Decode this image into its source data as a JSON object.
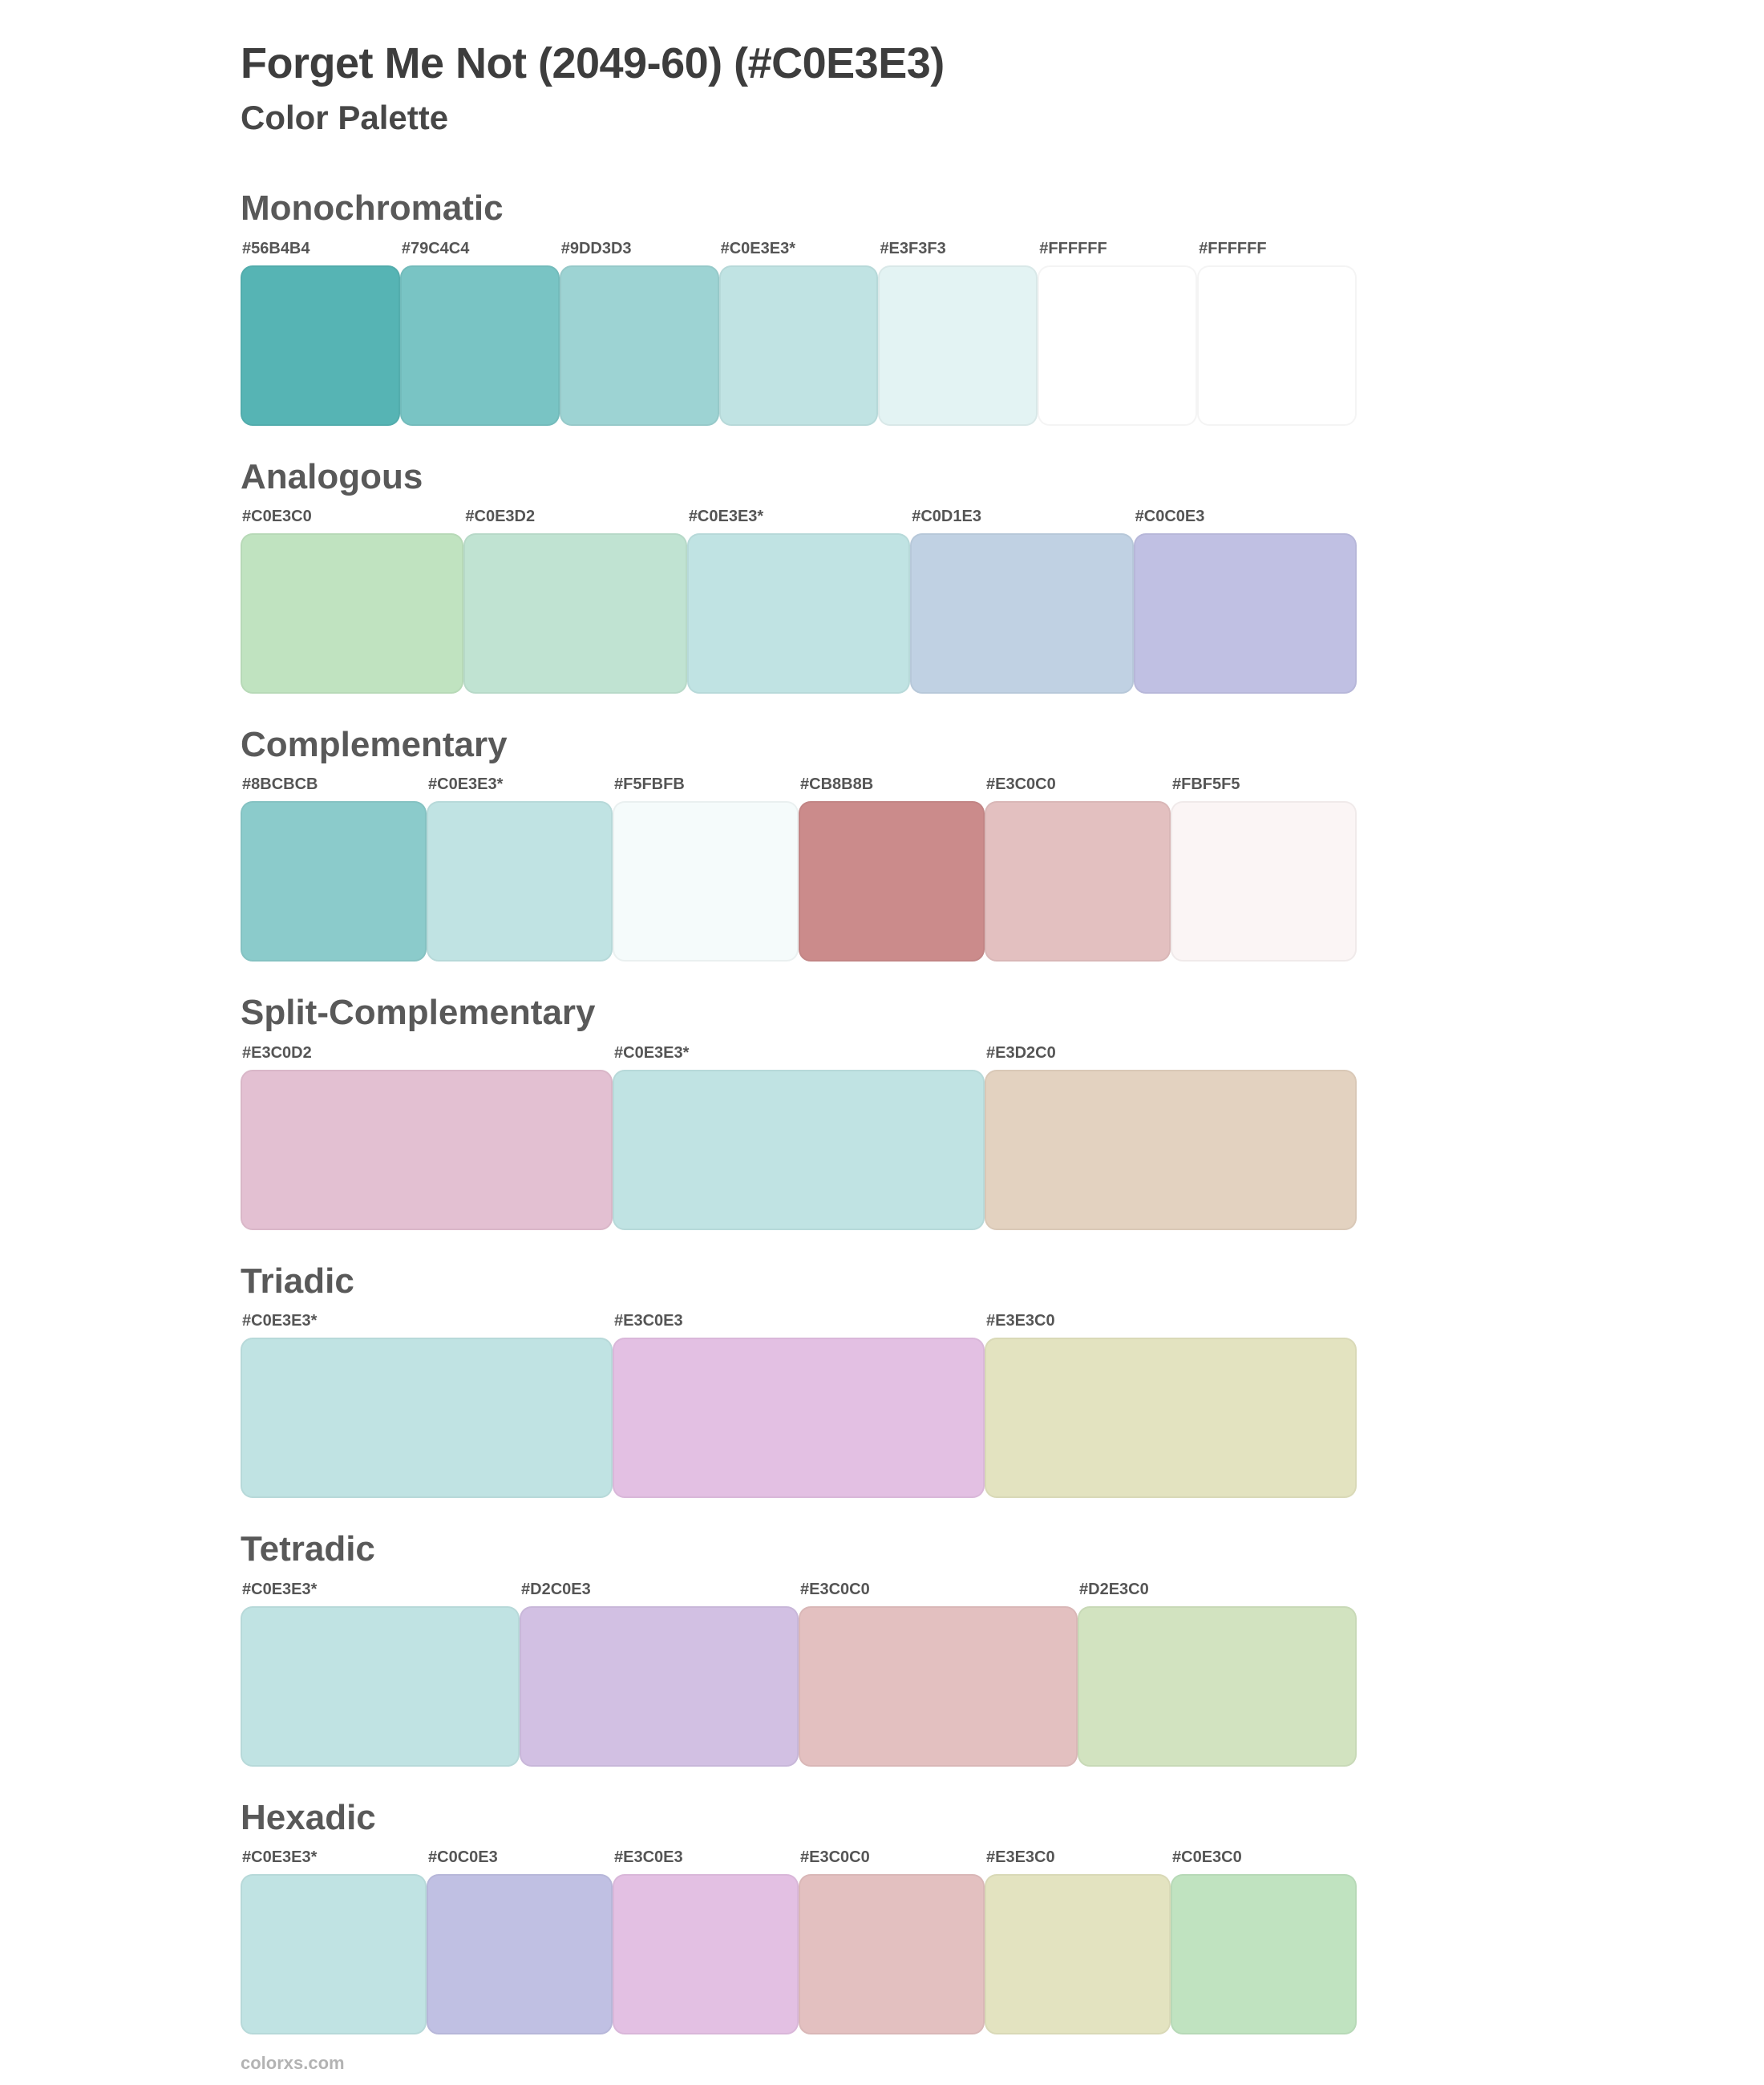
{
  "page": {
    "title": "Forget Me Not (2049-60) (#C0E3E3)",
    "subtitle": "Color Palette",
    "footer": "colorxs.com"
  },
  "palette": {
    "sections": [
      {
        "name": "Monochromatic",
        "swatches": [
          {
            "label": "#56B4B4",
            "color": "#56B4B4"
          },
          {
            "label": "#79C4C4",
            "color": "#79C4C4"
          },
          {
            "label": "#9DD3D3",
            "color": "#9DD3D3"
          },
          {
            "label": "#C0E3E3*",
            "color": "#C0E3E3"
          },
          {
            "label": "#E3F3F3",
            "color": "#E3F3F3"
          },
          {
            "label": "#FFFFFF",
            "color": "#FFFFFF"
          },
          {
            "label": "#FFFFFF",
            "color": "#FFFFFF"
          }
        ]
      },
      {
        "name": "Analogous",
        "swatches": [
          {
            "label": "#C0E3C0",
            "color": "#C0E3C0"
          },
          {
            "label": "#C0E3D2",
            "color": "#C0E3D2"
          },
          {
            "label": "#C0E3E3*",
            "color": "#C0E3E3"
          },
          {
            "label": "#C0D1E3",
            "color": "#C0D1E3"
          },
          {
            "label": "#C0C0E3",
            "color": "#C0C0E3"
          }
        ]
      },
      {
        "name": "Complementary",
        "swatches": [
          {
            "label": "#8BCBCB",
            "color": "#8BCBCB"
          },
          {
            "label": "#C0E3E3*",
            "color": "#C0E3E3"
          },
          {
            "label": "#F5FBFB",
            "color": "#F5FBFB"
          },
          {
            "label": "#CB8B8B",
            "color": "#CB8B8B"
          },
          {
            "label": "#E3C0C0",
            "color": "#E3C0C0"
          },
          {
            "label": "#FBF5F5",
            "color": "#FBF5F5"
          }
        ]
      },
      {
        "name": "Split-Complementary",
        "swatches": [
          {
            "label": "#E3C0D2",
            "color": "#E3C0D2"
          },
          {
            "label": "#C0E3E3*",
            "color": "#C0E3E3"
          },
          {
            "label": "#E3D2C0",
            "color": "#E3D2C0"
          }
        ]
      },
      {
        "name": "Triadic",
        "swatches": [
          {
            "label": "#C0E3E3*",
            "color": "#C0E3E3"
          },
          {
            "label": "#E3C0E3",
            "color": "#E3C0E3"
          },
          {
            "label": "#E3E3C0",
            "color": "#E3E3C0"
          }
        ]
      },
      {
        "name": "Tetradic",
        "swatches": [
          {
            "label": "#C0E3E3*",
            "color": "#C0E3E3"
          },
          {
            "label": "#D2C0E3",
            "color": "#D2C0E3"
          },
          {
            "label": "#E3C0C0",
            "color": "#E3C0C0"
          },
          {
            "label": "#D2E3C0",
            "color": "#D2E3C0"
          }
        ]
      },
      {
        "name": "Hexadic",
        "swatches": [
          {
            "label": "#C0E3E3*",
            "color": "#C0E3E3"
          },
          {
            "label": "#C0C0E3",
            "color": "#C0C0E3"
          },
          {
            "label": "#E3C0E3",
            "color": "#E3C0E3"
          },
          {
            "label": "#E3C0C0",
            "color": "#E3C0C0"
          },
          {
            "label": "#E3E3C0",
            "color": "#E3E3C0"
          },
          {
            "label": "#C0E3C0",
            "color": "#C0E3C0"
          }
        ]
      }
    ]
  }
}
